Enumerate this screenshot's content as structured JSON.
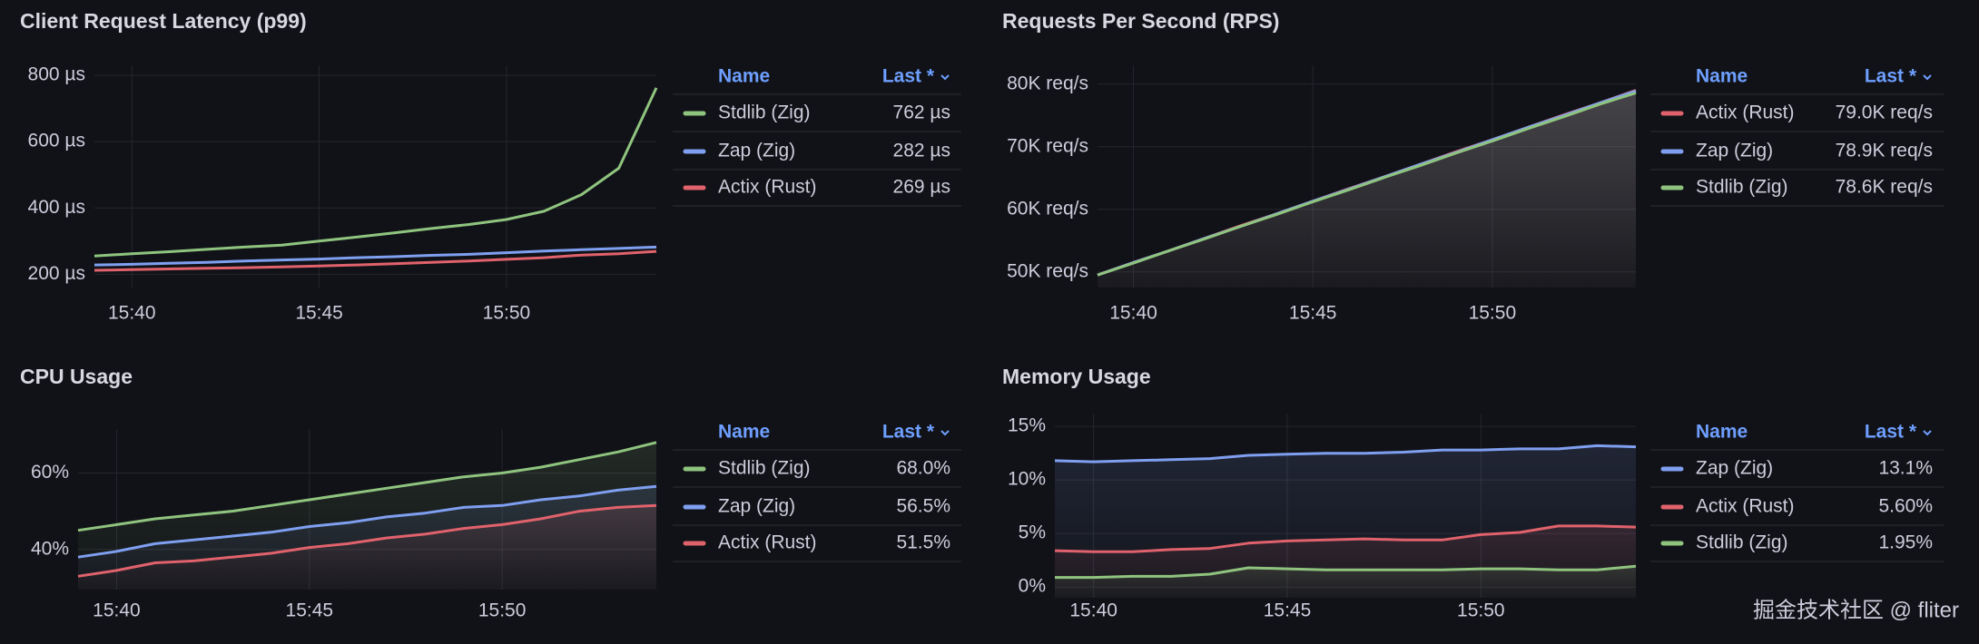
{
  "chart_data": [
    {
      "type": "line",
      "title": "Client Request Latency (p99)",
      "area": false,
      "x": [
        "15:39",
        "15:40",
        "15:41",
        "15:42",
        "15:43",
        "15:44",
        "15:45",
        "15:46",
        "15:47",
        "15:48",
        "15:49",
        "15:50",
        "15:51",
        "15:52",
        "15:53",
        "15:54"
      ],
      "xlim": [
        "15:39",
        "15:54"
      ],
      "xticks": [
        "15:40",
        "15:45",
        "15:50"
      ],
      "ylim": [
        160,
        830
      ],
      "yticks": [
        {
          "value": 200,
          "label": "200 µs"
        },
        {
          "value": 400,
          "label": "400 µs"
        },
        {
          "value": 600,
          "label": "600 µs"
        },
        {
          "value": 800,
          "label": "800 µs"
        }
      ],
      "grid": true,
      "legend_header": [
        "Name",
        "Last *"
      ],
      "series": [
        {
          "name": "Stdlib (Zig)",
          "color": "#8fc47f",
          "last_label": "762 µs",
          "values": [
            255,
            262,
            268,
            275,
            282,
            288,
            300,
            312,
            325,
            338,
            350,
            365,
            390,
            440,
            520,
            762
          ]
        },
        {
          "name": "Zap (Zig)",
          "color": "#7f9ff0",
          "last_label": "282 µs",
          "values": [
            228,
            230,
            233,
            236,
            240,
            243,
            246,
            250,
            253,
            257,
            260,
            265,
            270,
            274,
            278,
            282
          ]
        },
        {
          "name": "Actix (Rust)",
          "color": "#e0626c",
          "last_label": "269 µs",
          "values": [
            212,
            214,
            216,
            218,
            220,
            222,
            225,
            228,
            232,
            236,
            240,
            245,
            250,
            258,
            262,
            269
          ]
        }
      ]
    },
    {
      "type": "line",
      "title": "Requests Per Second (RPS)",
      "area": true,
      "x": [
        "15:39",
        "15:40",
        "15:41",
        "15:42",
        "15:43",
        "15:44",
        "15:45",
        "15:46",
        "15:47",
        "15:48",
        "15:49",
        "15:50",
        "15:51",
        "15:52",
        "15:53",
        "15:54"
      ],
      "xlim": [
        "15:39",
        "15:54"
      ],
      "xticks": [
        "15:40",
        "15:45",
        "15:50"
      ],
      "ylim": [
        47500,
        83000
      ],
      "yticks": [
        {
          "value": 50000,
          "label": "50K req/s"
        },
        {
          "value": 60000,
          "label": "60K req/s"
        },
        {
          "value": 70000,
          "label": "70K req/s"
        },
        {
          "value": 80000,
          "label": "80K req/s"
        }
      ],
      "grid": true,
      "legend_header": [
        "Name",
        "Last *"
      ],
      "series": [
        {
          "name": "Actix (Rust)",
          "color": "#e0626c",
          "last_label": "79.0K req/s",
          "values": [
            49500,
            51500,
            53400,
            55400,
            57400,
            59300,
            61300,
            63300,
            65200,
            67200,
            69200,
            71100,
            73100,
            75100,
            77000,
            79000
          ]
        },
        {
          "name": "Zap (Zig)",
          "color": "#7f9ff0",
          "last_label": "78.9K req/s",
          "values": [
            49500,
            51500,
            53400,
            55400,
            57300,
            59300,
            61300,
            63200,
            65200,
            67200,
            69100,
            71100,
            73100,
            75000,
            77000,
            78900
          ]
        },
        {
          "name": "Stdlib (Zig)",
          "color": "#8fc47f",
          "last_label": "78.6K req/s",
          "values": [
            49500,
            51400,
            53400,
            55300,
            57300,
            59200,
            61200,
            63100,
            65100,
            67000,
            69000,
            70900,
            72900,
            74800,
            76800,
            78600
          ]
        }
      ]
    },
    {
      "type": "line",
      "title": "CPU Usage",
      "area": true,
      "x": [
        "15:39",
        "15:40",
        "15:41",
        "15:42",
        "15:43",
        "15:44",
        "15:45",
        "15:46",
        "15:47",
        "15:48",
        "15:49",
        "15:50",
        "15:51",
        "15:52",
        "15:53",
        "15:54"
      ],
      "xlim": [
        "15:39",
        "15:54"
      ],
      "xticks": [
        "15:40",
        "15:45",
        "15:50"
      ],
      "ylim": [
        29.5,
        71.5
      ],
      "yticks": [
        {
          "value": 40,
          "label": "40%"
        },
        {
          "value": 60,
          "label": "60%"
        }
      ],
      "grid": true,
      "legend_header": [
        "Name",
        "Last *"
      ],
      "series": [
        {
          "name": "Stdlib (Zig)",
          "color": "#8fc47f",
          "last_label": "68.0%",
          "values": [
            45,
            46.5,
            48,
            49,
            50,
            51.5,
            53,
            54.5,
            56,
            57.5,
            59,
            60,
            61.5,
            63.5,
            65.5,
            68
          ]
        },
        {
          "name": "Zap (Zig)",
          "color": "#7f9ff0",
          "last_label": "56.5%",
          "values": [
            38,
            39.5,
            41.5,
            42.5,
            43.5,
            44.5,
            46,
            47,
            48.5,
            49.5,
            51,
            51.5,
            53,
            54,
            55.5,
            56.5
          ]
        },
        {
          "name": "Actix (Rust)",
          "color": "#e0626c",
          "last_label": "51.5%",
          "values": [
            33,
            34.5,
            36.5,
            37,
            38,
            39,
            40.5,
            41.5,
            43,
            44,
            45.5,
            46.5,
            48,
            50,
            51,
            51.5
          ]
        }
      ]
    },
    {
      "type": "line",
      "title": "Memory Usage",
      "area": true,
      "x": [
        "15:39",
        "15:40",
        "15:41",
        "15:42",
        "15:43",
        "15:44",
        "15:45",
        "15:46",
        "15:47",
        "15:48",
        "15:49",
        "15:50",
        "15:51",
        "15:52",
        "15:53",
        "15:54"
      ],
      "xlim": [
        "15:39",
        "15:54"
      ],
      "xticks": [
        "15:40",
        "15:45",
        "15:50"
      ],
      "ylim": [
        -1,
        16.2
      ],
      "yticks": [
        {
          "value": 0,
          "label": "0%"
        },
        {
          "value": 5,
          "label": "5%"
        },
        {
          "value": 10,
          "label": "10%"
        },
        {
          "value": 15,
          "label": "15%"
        }
      ],
      "grid": true,
      "legend_header": [
        "Name",
        "Last *"
      ],
      "series": [
        {
          "name": "Zap (Zig)",
          "color": "#7f9ff0",
          "last_label": "13.1%",
          "values": [
            11.8,
            11.7,
            11.8,
            11.9,
            12,
            12.3,
            12.4,
            12.5,
            12.5,
            12.6,
            12.8,
            12.8,
            12.9,
            12.9,
            13.2,
            13.1
          ]
        },
        {
          "name": "Actix (Rust)",
          "color": "#e0626c",
          "last_label": "5.60%",
          "values": [
            3.4,
            3.3,
            3.3,
            3.5,
            3.6,
            4.1,
            4.3,
            4.4,
            4.5,
            4.4,
            4.4,
            4.9,
            5.1,
            5.7,
            5.7,
            5.6
          ]
        },
        {
          "name": "Stdlib (Zig)",
          "color": "#8fc47f",
          "last_label": "1.95%",
          "values": [
            0.9,
            0.9,
            1,
            1,
            1.2,
            1.8,
            1.7,
            1.6,
            1.6,
            1.6,
            1.6,
            1.7,
            1.7,
            1.6,
            1.6,
            1.95
          ]
        }
      ]
    }
  ],
  "watermark": "掘金技术社区 @ fliter"
}
